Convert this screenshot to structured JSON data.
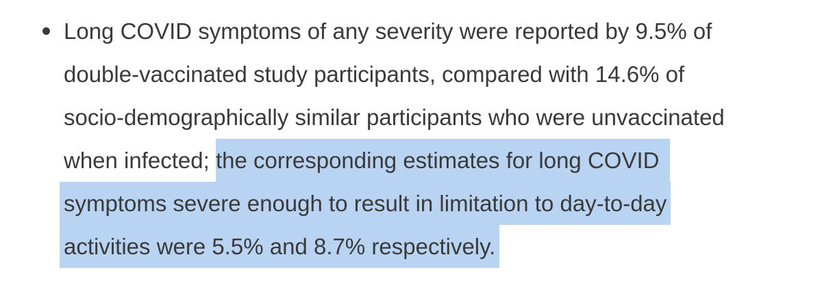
{
  "page": {
    "background": "#ffffff"
  },
  "colors": {
    "text": "#3a3a3a",
    "selection_highlight": "#b9d3f2"
  },
  "paragraph": {
    "marker": "disc-bullet",
    "full_text": "Long COVID symptoms of any severity were reported by 9.5% of double-vaccinated study participants, compared with 14.6% of socio-demographically similar participants who were unvaccinated when infected; the corresponding estimates for long COVID symptoms severe enough to result in limitation to day-to-day activities were 5.5% and 8.7% respectively.",
    "selected_text": "the corresponding estimates for long COVID symptoms severe enough to result in limitation to day-to-day activities were 5.5% and 8.7% respectively.",
    "lines": [
      {
        "segments": [
          {
            "text": "Long COVID symptoms of any severity were reported by 9.5% of",
            "highlight": false
          }
        ]
      },
      {
        "segments": [
          {
            "text": "double-vaccinated study participants, compared with 14.6% of",
            "highlight": false
          }
        ]
      },
      {
        "segments": [
          {
            "text": "socio-demographically similar participants who were unvaccinated",
            "highlight": false
          }
        ]
      },
      {
        "segments": [
          {
            "text": "when infected; ",
            "highlight": false
          },
          {
            "text": "the corresponding estimates for long COVID ",
            "highlight": true
          }
        ]
      },
      {
        "segments": [
          {
            "text": "symptoms severe enough to result in limitation to day-to-day",
            "highlight": true
          }
        ]
      },
      {
        "segments": [
          {
            "text": "activities were 5.5% and 8.7% respectively.",
            "highlight": true
          }
        ]
      }
    ]
  }
}
